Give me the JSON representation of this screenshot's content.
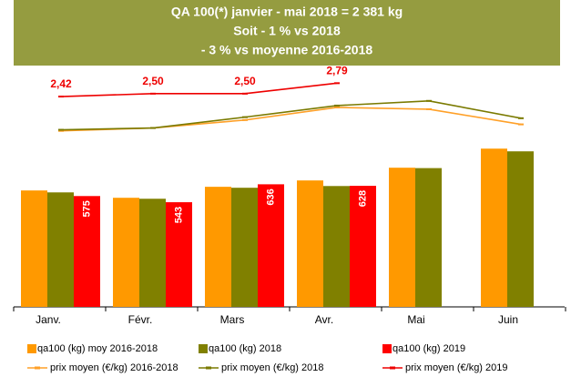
{
  "chart_data": {
    "type": "bar",
    "title_lines": [
      "QA 100(*) janvier - mai 2018 = 2 381 kg",
      "Soit  - 1 % vs  2018",
      "- 3 % vs moyenne 2016-2018"
    ],
    "banner_color": "#959c40",
    "categories": [
      "Janv.",
      "Févr.",
      "Mars",
      "Avr.",
      "Mai",
      "Juin"
    ],
    "ylim": [
      0,
      1200
    ],
    "y2lim": [
      -3.4,
      3.0
    ],
    "series": [
      {
        "name": "qa100 (kg) moy 2016-2018",
        "type": "bar",
        "color": "#ff9900",
        "values": [
          604,
          566,
          623,
          656,
          722,
          821
        ]
      },
      {
        "name": "qa100 (kg) 2018",
        "type": "bar",
        "color": "#808000",
        "values": [
          594,
          561,
          618,
          627,
          720,
          807
        ]
      },
      {
        "name": "qa100 (kg) 2019",
        "type": "bar",
        "color": "#ff0000",
        "values": [
          575,
          543,
          636,
          628,
          null,
          null
        ],
        "data_labels": true
      },
      {
        "name": "prix moyen (€/kg) 2016-2018",
        "type": "line",
        "axis": "y2",
        "color": "#ffa028",
        "values": [
          1.47,
          1.55,
          1.77,
          2.12,
          2.07,
          1.65
        ]
      },
      {
        "name": "prix moyen (€/kg) 2018",
        "type": "line",
        "axis": "y2",
        "color": "#7a7a00",
        "values": [
          1.5,
          1.55,
          1.85,
          2.17,
          2.3,
          1.82
        ]
      },
      {
        "name": "prix moyen (€/kg) 2019",
        "type": "line",
        "axis": "y2",
        "color": "#ee0000",
        "values": [
          2.42,
          2.5,
          2.5,
          2.79,
          null,
          null
        ],
        "value_labels": [
          "2,42",
          "2,50",
          "2,50",
          "2,79",
          null,
          null
        ]
      }
    ]
  }
}
